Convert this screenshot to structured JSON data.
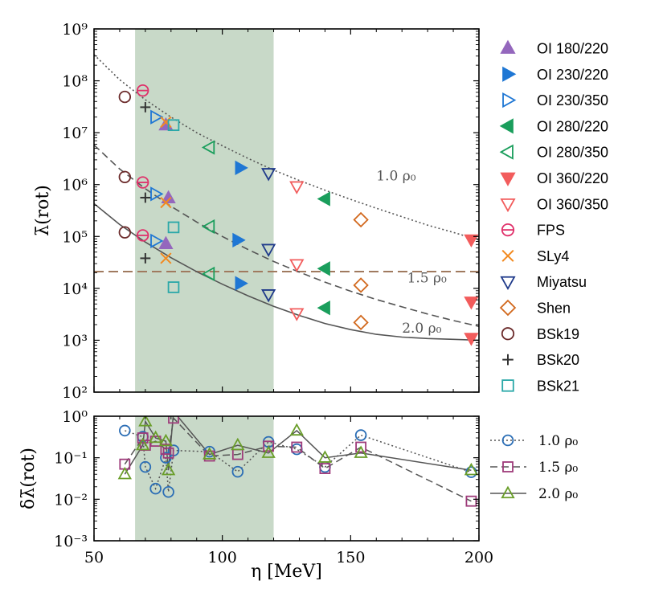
{
  "chart_data": [
    {
      "type": "scatter",
      "panel": "main",
      "ylabel": "λ̄(rot)",
      "xlim": [
        50,
        200
      ],
      "ylim_log10": [
        2,
        9
      ],
      "y_scale": "log",
      "x_ticks": [
        "50",
        "100",
        "150",
        "200"
      ],
      "y_ticks": [
        "10²",
        "10³",
        "10⁴",
        "10⁵",
        "10⁶",
        "10⁷",
        "10⁸",
        "10⁹"
      ],
      "shaded_band": {
        "x": [
          66,
          120
        ],
        "color": "#c8d9c8"
      },
      "horizontal_line": {
        "y": 21000,
        "color": "#a07a5f",
        "style": "dashed"
      },
      "fit_curves": [
        {
          "label": "1.0 ρ₀",
          "style": "dotted",
          "color": "#555555",
          "points": [
            [
              50,
              320000000.0
            ],
            [
              60,
              105000000.0
            ],
            [
              70,
              43000000.0
            ],
            [
              80,
              20000000.0
            ],
            [
              90,
              10000000.0
            ],
            [
              100,
              5600000.0
            ],
            [
              110,
              3200000.0
            ],
            [
              120,
              1900000.0
            ],
            [
              130,
              1200000.0
            ],
            [
              140,
              780000.0
            ],
            [
              150,
              520000.0
            ],
            [
              160,
              350000.0
            ],
            [
              170,
              240000.0
            ],
            [
              180,
              165000.0
            ],
            [
              190,
              120000.0
            ],
            [
              200,
              85000.0
            ]
          ]
        },
        {
          "label": "1.5 ρ₀",
          "style": "dashed",
          "color": "#555555",
          "points": [
            [
              50,
              5800000.0
            ],
            [
              60,
              2000000.0
            ],
            [
              70,
              830000.0
            ],
            [
              80,
              380000.0
            ],
            [
              90,
              190000.0
            ],
            [
              100,
              100000.0
            ],
            [
              110,
              56000.0
            ],
            [
              120,
              33000.0
            ],
            [
              130,
              20500.0
            ],
            [
              140,
              13200.0
            ],
            [
              150,
              8800.0
            ],
            [
              160,
              6100.0
            ],
            [
              170,
              4400.0
            ],
            [
              180,
              3200.0
            ],
            [
              190,
              2400.0
            ],
            [
              200,
              1850.0
            ]
          ]
        },
        {
          "label": "2.0 ρ₀",
          "style": "solid",
          "color": "#555555",
          "points": [
            [
              50,
              430000.0
            ],
            [
              60,
              170000.0
            ],
            [
              70,
              78000.0
            ],
            [
              80,
              39000.0
            ],
            [
              90,
              21000.0
            ],
            [
              100,
              12000.0
            ],
            [
              110,
              7200.0
            ],
            [
              120,
              4500.0
            ],
            [
              130,
              3000.0
            ],
            [
              140,
              2100.0
            ],
            [
              150,
              1600.0
            ],
            [
              160,
              1300.0
            ],
            [
              170,
              1150.0
            ],
            [
              180,
              1080.0
            ],
            [
              190,
              1040.0
            ],
            [
              200,
              1000.0
            ]
          ]
        }
      ],
      "series": [
        {
          "name": "OI 180/220",
          "marker": "triangle-up",
          "filled": true,
          "color": "#9467bd",
          "points": [
            [
              78,
              14000000.0
            ],
            [
              79,
              550000.0
            ],
            [
              78,
              72000.0
            ]
          ]
        },
        {
          "name": "OI 230/220",
          "marker": "triangle-right",
          "filled": true,
          "color": "#1f77d4",
          "points": [
            [
              107,
              2100000.0
            ],
            [
              106,
              85000.0
            ],
            [
              107,
              12500.0
            ]
          ]
        },
        {
          "name": "OI 230/350",
          "marker": "triangle-right",
          "filled": false,
          "color": "#1f77d4",
          "points": [
            [
              74,
              20000000.0
            ],
            [
              74,
              660000.0
            ],
            [
              74,
              82000.0
            ]
          ]
        },
        {
          "name": "OI 280/220",
          "marker": "triangle-left",
          "filled": true,
          "color": "#1a9e5c",
          "points": [
            [
              140,
              530000.0
            ],
            [
              140,
              24000.0
            ],
            [
              140,
              4200.0
            ]
          ]
        },
        {
          "name": "OI 280/350",
          "marker": "triangle-left",
          "filled": false,
          "color": "#1a9e5c",
          "points": [
            [
              95,
              5200000.0
            ],
            [
              95,
              155000.0
            ],
            [
              95,
              19000.0
            ]
          ]
        },
        {
          "name": "OI 360/220",
          "marker": "triangle-down",
          "filled": true,
          "color": "#f25c5c",
          "points": [
            [
              197,
              87000.0
            ],
            [
              197,
              5500.0
            ],
            [
              197,
              1100.0
            ]
          ]
        },
        {
          "name": "OI 360/350",
          "marker": "triangle-down",
          "filled": false,
          "color": "#f25c5c",
          "points": [
            [
              129,
              920000.0
            ],
            [
              129,
              29000.0
            ],
            [
              129,
              3300.0
            ]
          ]
        },
        {
          "name": "FPS",
          "marker": "circle-bar",
          "filled": false,
          "color": "#e0306a",
          "points": [
            [
              69,
              65000000.0
            ],
            [
              69,
              1100000.0
            ],
            [
              69,
              105000.0
            ]
          ]
        },
        {
          "name": "SLy4",
          "marker": "x",
          "filled": false,
          "color": "#f28a20",
          "points": [
            [
              78,
              16000000.0
            ],
            [
              78,
              450000.0
            ],
            [
              78,
              38000.0
            ]
          ]
        },
        {
          "name": "Miyatsu",
          "marker": "triangle-down",
          "filled": false,
          "color": "#1f3a8a",
          "points": [
            [
              118,
              1650000.0
            ],
            [
              118,
              57000.0
            ],
            [
              118,
              7600.0
            ]
          ]
        },
        {
          "name": "Shen",
          "marker": "diamond",
          "filled": false,
          "color": "#d2691e",
          "points": [
            [
              154,
              210000.0
            ],
            [
              154,
              11500.0
            ],
            [
              154,
              2200.0
            ]
          ]
        },
        {
          "name": "BSk19",
          "marker": "circle",
          "filled": false,
          "color": "#6b2a2a",
          "points": [
            [
              62,
              49000000.0
            ],
            [
              62,
              1400000.0
            ],
            [
              62,
              120000.0
            ]
          ]
        },
        {
          "name": "BSk20",
          "marker": "plus",
          "filled": false,
          "color": "#333333",
          "points": [
            [
              70,
              31000000.0
            ],
            [
              70,
              560000.0
            ],
            [
              70,
              38000.0
            ]
          ]
        },
        {
          "name": "BSk21",
          "marker": "square",
          "filled": false,
          "color": "#2aa8a8",
          "points": [
            [
              81,
              14000000.0
            ],
            [
              81,
              150000.0
            ],
            [
              81,
              10500.0
            ]
          ]
        }
      ],
      "curve_labels": [
        "1.0 ρ₀",
        "1.5 ρ₀",
        "2.0 ρ₀"
      ]
    },
    {
      "type": "line",
      "panel": "residual",
      "xlabel": "η [MeV]",
      "ylabel": "δλ̄(rot)",
      "xlim": [
        50,
        200
      ],
      "ylim_log10": [
        -3,
        0
      ],
      "y_scale": "log",
      "x_ticks": [
        "50",
        "100",
        "150",
        "200"
      ],
      "y_ticks": [
        "10⁻³",
        "10⁻²",
        "10⁻¹",
        "10⁰"
      ],
      "series": [
        {
          "name": "1.0 ρ₀",
          "style": "dotted",
          "marker": "circle",
          "color": "#2a6db5",
          "x": [
            62,
            69,
            70,
            74,
            78,
            79,
            81,
            95,
            106,
            118,
            129,
            140,
            154,
            197
          ],
          "y": [
            0.45,
            0.32,
            0.06,
            0.018,
            0.1,
            0.015,
            0.15,
            0.14,
            0.046,
            0.24,
            0.16,
            0.06,
            0.35,
            0.045
          ]
        },
        {
          "name": "1.5 ρ₀",
          "style": "dashed",
          "marker": "square",
          "color": "#9e3b7a",
          "x": [
            62,
            69,
            70,
            74,
            78,
            79,
            81,
            95,
            106,
            118,
            129,
            140,
            154,
            197
          ],
          "y": [
            0.07,
            0.3,
            0.2,
            0.25,
            0.16,
            0.13,
            0.9,
            0.11,
            0.12,
            0.19,
            0.18,
            0.055,
            0.18,
            0.009
          ]
        },
        {
          "name": "2.0 ρ₀",
          "style": "solid",
          "marker": "triangle-up",
          "color": "#6a9e2a",
          "x": [
            62,
            69,
            70,
            74,
            78,
            79,
            81,
            95,
            106,
            118,
            129,
            140,
            154,
            197
          ],
          "y": [
            0.04,
            0.2,
            0.75,
            0.3,
            0.25,
            0.05,
            1.3,
            0.12,
            0.2,
            0.13,
            0.45,
            0.1,
            0.13,
            0.05
          ]
        }
      ]
    }
  ]
}
